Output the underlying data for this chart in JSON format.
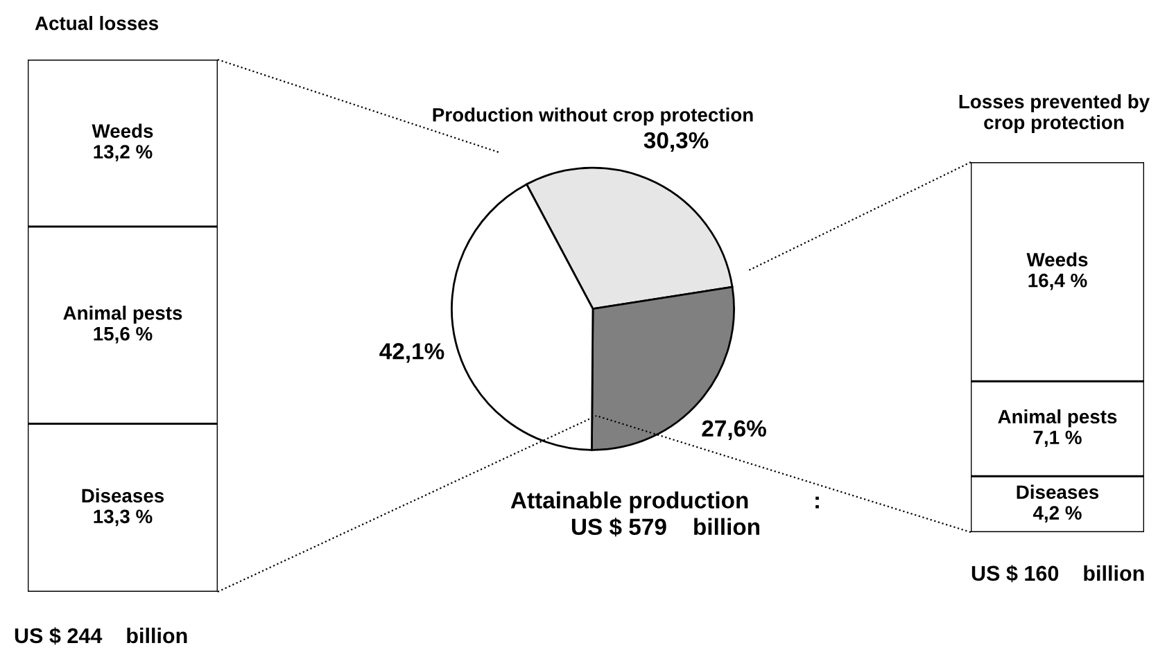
{
  "chart_data": [
    {
      "type": "bar",
      "title": "Actual losses",
      "stacked": true,
      "categories": [
        null
      ],
      "tick_labels": false,
      "legend": false,
      "series": [
        {
          "name": "Diseases",
          "color": "#ffffff",
          "values": [
            13.3
          ],
          "value_labels": [
            "13,3 %"
          ]
        },
        {
          "name": "Animal pests",
          "color": "#ffffff",
          "values": [
            15.6
          ],
          "value_labels": [
            "15,6 %"
          ]
        },
        {
          "name": "Weeds",
          "color": "#ffffff",
          "values": [
            13.2
          ],
          "value_labels": [
            "13,2 %"
          ]
        }
      ],
      "annotations": [
        "US $ 244    billion"
      ]
    },
    {
      "type": "pie",
      "categories": [
        "Production without crop protection",
        null,
        null
      ],
      "values": [
        30.3,
        27.6,
        42.1
      ],
      "colors": [
        "#e6e6e6",
        "#808080",
        "#ffffff"
      ],
      "value_labels": [
        "30,3%",
        "27,6%",
        "42,1%"
      ],
      "legend": false,
      "annotations": [
        "Attainable production          :\nUS $ 579    billion"
      ]
    },
    {
      "type": "bar",
      "title": "Losses prevented by\ncrop protection",
      "stacked": true,
      "categories": [
        null
      ],
      "tick_labels": false,
      "legend": false,
      "series": [
        {
          "name": "Diseases",
          "color": "#ffffff",
          "values": [
            4.2
          ],
          "value_labels": [
            "4,2 %"
          ]
        },
        {
          "name": "Animal pests",
          "color": "#ffffff",
          "values": [
            7.1
          ],
          "value_labels": [
            "7,1 %"
          ]
        },
        {
          "name": "Weeds",
          "color": "#ffffff",
          "values": [
            16.4
          ],
          "value_labels": [
            "16,4 %"
          ]
        }
      ],
      "annotations": [
        "US $ 160    billion"
      ]
    }
  ]
}
